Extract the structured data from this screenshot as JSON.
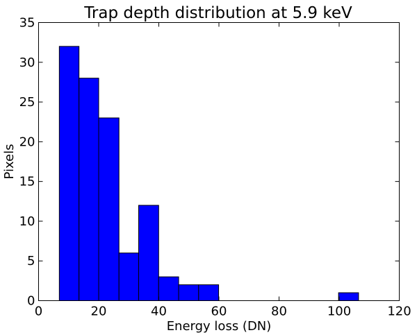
{
  "chart_data": {
    "type": "histogram",
    "title": "Trap depth distribution at 5.9 keV",
    "xlabel": "Energy loss (DN)",
    "ylabel": "Pixels",
    "xlim": [
      0,
      120
    ],
    "ylim": [
      0,
      35
    ],
    "xticks": [
      0,
      20,
      40,
      60,
      80,
      100,
      120
    ],
    "yticks": [
      0,
      5,
      10,
      15,
      20,
      25,
      30,
      35
    ],
    "grid": false,
    "bar_color": "#0000ff",
    "edge_color": "#000000",
    "bins": [
      {
        "x0": 6.9,
        "x1": 13.45,
        "value": 32
      },
      {
        "x0": 13.45,
        "x1": 20.0,
        "value": 28
      },
      {
        "x0": 20.0,
        "x1": 26.75,
        "value": 23
      },
      {
        "x0": 26.75,
        "x1": 33.3,
        "value": 6
      },
      {
        "x0": 33.3,
        "x1": 39.95,
        "value": 12
      },
      {
        "x0": 39.95,
        "x1": 46.6,
        "value": 3
      },
      {
        "x0": 46.6,
        "x1": 53.25,
        "value": 2
      },
      {
        "x0": 53.25,
        "x1": 59.9,
        "value": 2
      },
      {
        "x0": 59.9,
        "x1": 66.55,
        "value": 0
      },
      {
        "x0": 66.55,
        "x1": 73.2,
        "value": 0
      },
      {
        "x0": 73.2,
        "x1": 79.85,
        "value": 0
      },
      {
        "x0": 79.85,
        "x1": 86.5,
        "value": 0
      },
      {
        "x0": 86.5,
        "x1": 93.15,
        "value": 0
      },
      {
        "x0": 93.15,
        "x1": 99.8,
        "value": 0
      },
      {
        "x0": 99.8,
        "x1": 106.45,
        "value": 1
      }
    ]
  }
}
